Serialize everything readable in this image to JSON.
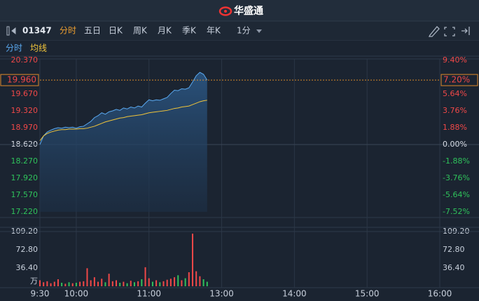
{
  "header": {
    "logo": "华盛通"
  },
  "toolbar": {
    "code": "01347",
    "tabs": [
      "分时",
      "五日",
      "日K",
      "周K",
      "月K",
      "季K",
      "年K"
    ],
    "interval": "1分"
  },
  "chart_data": [
    {
      "type": "line",
      "x": [
        0,
        3,
        6,
        9,
        12,
        15,
        18,
        21,
        24,
        27,
        30,
        33,
        36,
        39,
        42,
        45,
        48,
        51,
        54,
        57,
        60,
        63,
        66,
        69,
        72,
        75,
        78,
        81,
        84,
        87,
        90,
        93,
        96,
        99,
        102,
        105,
        108,
        111,
        114,
        117,
        120,
        123,
        126,
        129,
        132,
        135,
        138
      ],
      "xlim": [
        0,
        330
      ],
      "series": [
        {
          "name": "分时",
          "color": "#5aa9f0",
          "values": [
            18.62,
            18.8,
            18.88,
            18.92,
            18.95,
            18.97,
            18.96,
            18.98,
            18.97,
            18.98,
            18.96,
            18.99,
            19.0,
            19.05,
            19.1,
            19.18,
            19.22,
            19.28,
            19.25,
            19.3,
            19.32,
            19.35,
            19.33,
            19.38,
            19.36,
            19.4,
            19.38,
            19.42,
            19.4,
            19.48,
            19.55,
            19.53,
            19.55,
            19.54,
            19.57,
            19.6,
            19.68,
            19.75,
            19.74,
            19.78,
            19.77,
            19.8,
            19.92,
            20.05,
            20.12,
            20.08,
            19.96
          ]
        },
        {
          "name": "均线",
          "color": "#f0c43a",
          "values": [
            18.7,
            18.8,
            18.85,
            18.88,
            18.9,
            18.92,
            18.93,
            18.93,
            18.94,
            18.94,
            18.94,
            18.95,
            18.95,
            18.96,
            18.98,
            19.0,
            19.03,
            19.06,
            19.09,
            19.11,
            19.13,
            19.15,
            19.17,
            19.18,
            19.2,
            19.21,
            19.22,
            19.23,
            19.24,
            19.26,
            19.28,
            19.29,
            19.3,
            19.31,
            19.32,
            19.33,
            19.35,
            19.37,
            19.38,
            19.4,
            19.41,
            19.42,
            19.45,
            19.48,
            19.51,
            19.53,
            19.54
          ]
        }
      ],
      "base": 18.62,
      "ylim": [
        17.22,
        20.37
      ],
      "yticks": [
        {
          "value": 20.37,
          "label": "20.370"
        },
        {
          "value": 19.67,
          "label": "19.670"
        },
        {
          "value": 19.32,
          "label": "19.320"
        },
        {
          "value": 18.97,
          "label": "18.970"
        },
        {
          "value": 18.62,
          "label": "18.620"
        },
        {
          "value": 18.27,
          "label": "18.270"
        },
        {
          "value": 17.92,
          "label": "17.920"
        },
        {
          "value": 17.57,
          "label": "17.570"
        },
        {
          "value": 17.22,
          "label": "17.220"
        }
      ],
      "y2lim": [
        -7.52,
        9.4
      ],
      "y2ticks": [
        {
          "value": 9.4,
          "label": "9.40%"
        },
        {
          "value": 5.64,
          "label": "5.64%"
        },
        {
          "value": 3.76,
          "label": "3.76%"
        },
        {
          "value": 1.88,
          "label": "1.88%"
        },
        {
          "value": 0,
          "label": "0.00%"
        },
        {
          "value": -1.88,
          "label": "-1.88%"
        },
        {
          "value": -3.76,
          "label": "-3.76%"
        },
        {
          "value": -5.64,
          "label": "-5.64%"
        },
        {
          "value": -7.52,
          "label": "-7.52%"
        }
      ],
      "last": {
        "value": 19.96,
        "label": "19.960"
      },
      "last_pct": {
        "value": 7.2,
        "label": "7.20%"
      },
      "up_color": "#f04848",
      "down_color": "#2fc25b",
      "flat_color": "#d8dde6"
    },
    {
      "type": "bar",
      "x": [
        0,
        3,
        6,
        9,
        12,
        15,
        18,
        21,
        24,
        27,
        30,
        33,
        36,
        39,
        42,
        45,
        48,
        51,
        54,
        57,
        60,
        63,
        66,
        69,
        72,
        75,
        78,
        81,
        84,
        87,
        90,
        93,
        96,
        99,
        102,
        105,
        108,
        111,
        114,
        117,
        120,
        123,
        126,
        129,
        132,
        135,
        138
      ],
      "values": [
        12,
        8,
        10,
        6,
        9,
        14,
        7,
        5,
        8,
        6,
        7,
        9,
        10,
        36,
        12,
        18,
        9,
        15,
        8,
        25,
        10,
        12,
        7,
        9,
        6,
        11,
        8,
        10,
        14,
        38,
        16,
        9,
        12,
        8,
        10,
        13,
        15,
        18,
        22,
        12,
        16,
        28,
        105,
        30,
        20,
        14,
        9
      ],
      "xlim": [
        0,
        330
      ],
      "xticks": [
        {
          "value": 0,
          "label": "9:30"
        },
        {
          "value": 30,
          "label": "10:00"
        },
        {
          "value": 90,
          "label": "11:00"
        },
        {
          "value": 150,
          "label": "13:00"
        },
        {
          "value": 210,
          "label": "14:00"
        },
        {
          "value": 270,
          "label": "15:00"
        },
        {
          "value": 330,
          "label": "16:00"
        }
      ],
      "ylim": [
        0,
        109.2
      ],
      "yticks": [
        {
          "value": 109.2,
          "label": "109.20"
        },
        {
          "value": 72.8,
          "label": "72.80"
        },
        {
          "value": 36.4,
          "label": "36.40"
        },
        {
          "value": 0,
          "label": "万"
        }
      ],
      "up_color": "#f04848",
      "down_color": "#2fc25b"
    }
  ]
}
